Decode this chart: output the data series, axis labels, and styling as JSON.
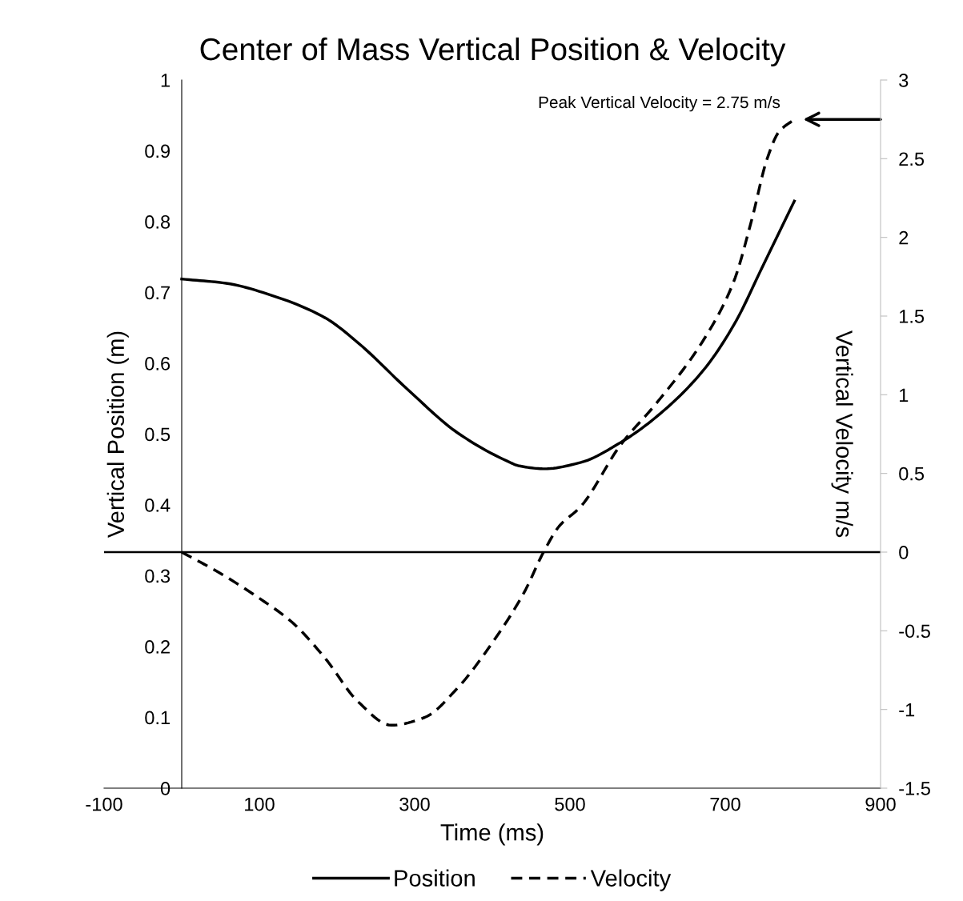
{
  "chart_data": {
    "type": "line",
    "title": "Center of Mass Vertical Position & Velocity",
    "xlabel": "Time (ms)",
    "ylabel": "Vertical Position (m)",
    "y2label": "Vertical Velocity m/s",
    "xlim": [
      -100,
      900
    ],
    "xticks": [
      -100,
      100,
      300,
      500,
      700,
      900
    ],
    "ylim": [
      0,
      1
    ],
    "yticks": [
      0,
      0.1,
      0.2,
      0.3,
      0.4,
      0.5,
      0.6,
      0.7,
      0.8,
      0.9,
      1
    ],
    "y2lim": [
      -1.5,
      3
    ],
    "y2ticks": [
      -1.5,
      -1,
      -0.5,
      0,
      0.5,
      1,
      1.5,
      2,
      2.5,
      3
    ],
    "series": [
      {
        "name": "Position",
        "color": "#000000",
        "line_style": "solid",
        "x": [
          0,
          57,
          121,
          185,
          227,
          291,
          355,
          419,
          435,
          467,
          514,
          565,
          612,
          671,
          711,
          750,
          789
        ],
        "values": [
          0.719,
          0.713,
          0.694,
          0.664,
          0.629,
          0.563,
          0.502,
          0.462,
          0.455,
          0.451,
          0.46,
          0.488,
          0.525,
          0.589,
          0.654,
          0.741,
          0.829
        ]
      },
      {
        "name": "Velocity",
        "color": "#000000",
        "line_style": "dashed",
        "axis": "y2",
        "x": [
          0,
          48,
          99,
          142,
          185,
          227,
          270,
          313,
          355,
          398,
          441,
          466,
          486,
          514,
          565,
          612,
          671,
          711,
          734,
          754,
          769,
          789
        ],
        "values": [
          0,
          -0.13,
          -0.29,
          -0.445,
          -0.676,
          -0.95,
          -1.1,
          -1.05,
          -0.865,
          -0.59,
          -0.256,
          0,
          0.164,
          0.29,
          0.68,
          0.95,
          1.34,
          1.72,
          2.11,
          2.5,
          2.67,
          2.75
        ]
      }
    ],
    "ref_lines": [
      {
        "axis": "y2",
        "value": 0,
        "color": "#000000"
      }
    ],
    "annotations": [
      "Peak Vertical Velocity = 2.75 m/s"
    ],
    "legend": "bottom",
    "grid": false
  }
}
